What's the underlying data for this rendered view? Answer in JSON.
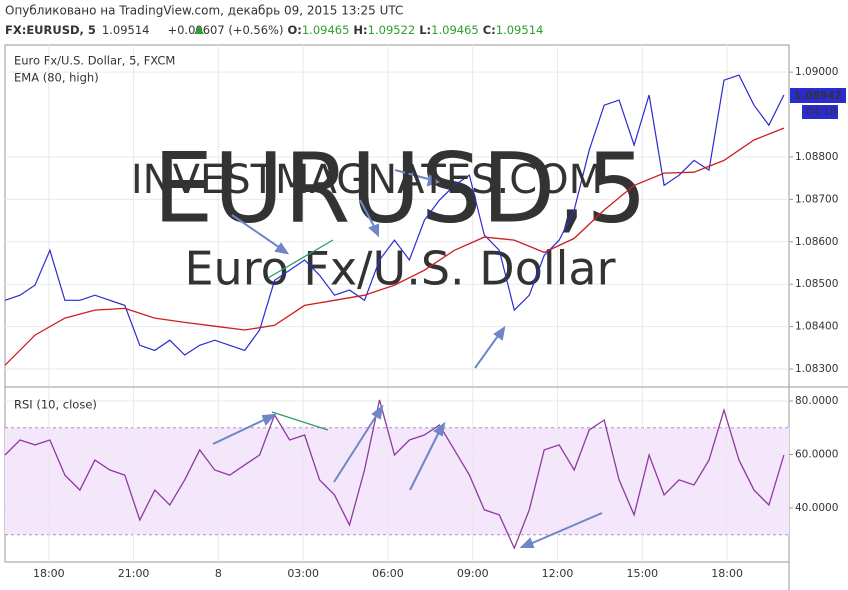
{
  "header": {
    "published": "Опубликовано на TradingView.com, декабрь 09, 2015 13:25 UTC",
    "symbol": "FX:EURUSD, 5",
    "last": "1.09514",
    "change": "+0.00607 (+0.56%)",
    "open_label": "O:",
    "open": "1.09465",
    "high_label": "H:",
    "high": "1.09522",
    "low_label": "L:",
    "low": "1.09465",
    "close_label": "C:",
    "close": "1.09514"
  },
  "chart_data": [
    {
      "type": "line",
      "title": "Euro Fx/U.S. Dollar, 5, FXCM",
      "annotations": [
        "EURUSD,5",
        "Euro Fx/U.S. Dollar",
        "INVESTMAGNATES.COM"
      ],
      "price_label": "1.08942",
      "countdown": "04:18",
      "xlim": [
        16.45,
        44.19
      ],
      "ylim": [
        1.0826,
        1.09064
      ],
      "yticks": [
        {
          "value": 1.083,
          "label": "1.08300"
        },
        {
          "value": 1.084,
          "label": "1.08400"
        },
        {
          "value": 1.085,
          "label": "1.08500"
        },
        {
          "value": 1.086,
          "label": "1.08600"
        },
        {
          "value": 1.087,
          "label": "1.08700"
        },
        {
          "value": 1.088,
          "label": "1.08800"
        },
        {
          "value": 1.09,
          "label": "1.09000"
        }
      ],
      "series": [
        {
          "color": "#2b2bd2",
          "x": [
            16.45,
            16.98,
            17.51,
            18.04,
            18.57,
            19.1,
            19.63,
            20.16,
            20.69,
            21.22,
            21.75,
            22.28,
            22.81,
            23.34,
            23.87,
            24.4,
            24.93,
            25.46,
            25.99,
            26.52,
            27.05,
            27.58,
            28.11,
            28.64,
            29.17,
            29.7,
            30.23,
            30.76,
            31.29,
            31.82,
            32.35,
            32.88,
            33.41,
            33.94,
            34.47,
            35.0,
            35.53,
            36.06,
            36.59,
            37.12,
            37.65,
            38.18,
            38.71,
            39.24,
            39.77,
            40.3,
            40.83,
            41.36,
            41.89,
            42.42,
            42.95,
            43.48,
            44.01
          ],
          "values": [
            1.08462,
            1.08474,
            1.08498,
            1.0858,
            1.08462,
            1.08462,
            1.08474,
            1.08462,
            1.0845,
            1.08356,
            1.08344,
            1.08368,
            1.08333,
            1.08356,
            1.08368,
            1.08356,
            1.08344,
            1.08392,
            1.08509,
            1.08533,
            1.08557,
            1.08521,
            1.08474,
            1.08486,
            1.08462,
            1.08557,
            1.08604,
            1.08557,
            1.08651,
            1.08698,
            1.08733,
            1.08757,
            1.08616,
            1.0858,
            1.08439,
            1.08474,
            1.08568,
            1.08604,
            1.08675,
            1.08816,
            1.08922,
            1.08934,
            1.08828,
            1.08946,
            1.08733,
            1.08757,
            1.08792,
            1.08769,
            1.08981,
            1.08993,
            1.08922,
            1.08875,
            1.08946
          ]
        },
        {
          "name": "EMA (80, high)",
          "color": "#cc1f1f",
          "x": [
            16.45,
            17.51,
            18.57,
            19.63,
            20.69,
            21.75,
            22.81,
            23.87,
            24.93,
            25.99,
            27.05,
            28.11,
            29.17,
            30.23,
            31.29,
            32.35,
            33.41,
            34.47,
            35.53,
            36.59,
            37.65,
            38.71,
            39.77,
            40.83,
            41.89,
            42.95,
            44.01
          ],
          "values": [
            1.08309,
            1.0838,
            1.0842,
            1.08439,
            1.08443,
            1.0842,
            1.0841,
            1.08401,
            1.08392,
            1.08403,
            1.0845,
            1.08462,
            1.08474,
            1.08498,
            1.08533,
            1.0858,
            1.08611,
            1.08604,
            1.08575,
            1.08608,
            1.08675,
            1.08733,
            1.08762,
            1.08764,
            1.08792,
            1.0884,
            1.08868
          ]
        }
      ]
    },
    {
      "type": "line",
      "xlim": [
        16.45,
        44.19
      ],
      "ylim": [
        19.8,
        84.86
      ],
      "bands": [
        30,
        70
      ],
      "yticks": [
        {
          "value": 40,
          "label": "40.0000"
        },
        {
          "value": 60,
          "label": "60.0000"
        },
        {
          "value": 80,
          "label": "80.0000"
        }
      ],
      "xticks": [
        {
          "value": 18,
          "label": "18:00"
        },
        {
          "value": 21,
          "label": "21:00"
        },
        {
          "value": 24,
          "label": "8"
        },
        {
          "value": 27,
          "label": "03:00"
        },
        {
          "value": 30,
          "label": "06:00"
        },
        {
          "value": 33,
          "label": "09:00"
        },
        {
          "value": 36,
          "label": "12:00"
        },
        {
          "value": 39,
          "label": "15:00"
        },
        {
          "value": 42,
          "label": "18:00"
        }
      ],
      "series": [
        {
          "name": "RSI (10, close)",
          "color": "#8e3a9f",
          "x": [
            16.45,
            16.98,
            17.51,
            18.04,
            18.57,
            19.1,
            19.63,
            20.16,
            20.69,
            21.22,
            21.75,
            22.28,
            22.81,
            23.34,
            23.87,
            24.4,
            24.93,
            25.46,
            25.99,
            26.52,
            27.05,
            27.58,
            28.11,
            28.64,
            29.17,
            29.7,
            30.23,
            30.76,
            31.29,
            31.82,
            32.35,
            32.88,
            33.41,
            33.94,
            34.47,
            35.0,
            35.53,
            36.06,
            36.59,
            37.12,
            37.65,
            38.18,
            38.71,
            39.24,
            39.77,
            40.3,
            40.83,
            41.36,
            41.89,
            42.42,
            42.95,
            43.48,
            44.01
          ],
          "values": [
            59.8,
            65.4,
            63.6,
            65.4,
            52.3,
            46.7,
            57.9,
            54.2,
            52.3,
            35.5,
            46.7,
            41.1,
            50.5,
            61.7,
            54.2,
            52.3,
            56.1,
            59.8,
            74.8,
            65.4,
            67.3,
            50.5,
            44.9,
            33.6,
            54.2,
            80.4,
            59.8,
            65.4,
            67.3,
            71.0,
            61.7,
            52.3,
            39.3,
            37.4,
            25.0,
            39.3,
            61.7,
            63.6,
            54.2,
            69.2,
            72.9,
            50.5,
            37.4,
            59.8,
            44.9,
            50.5,
            48.6,
            57.9,
            76.6,
            57.9,
            46.7,
            41.1,
            59.8
          ]
        }
      ]
    }
  ]
}
